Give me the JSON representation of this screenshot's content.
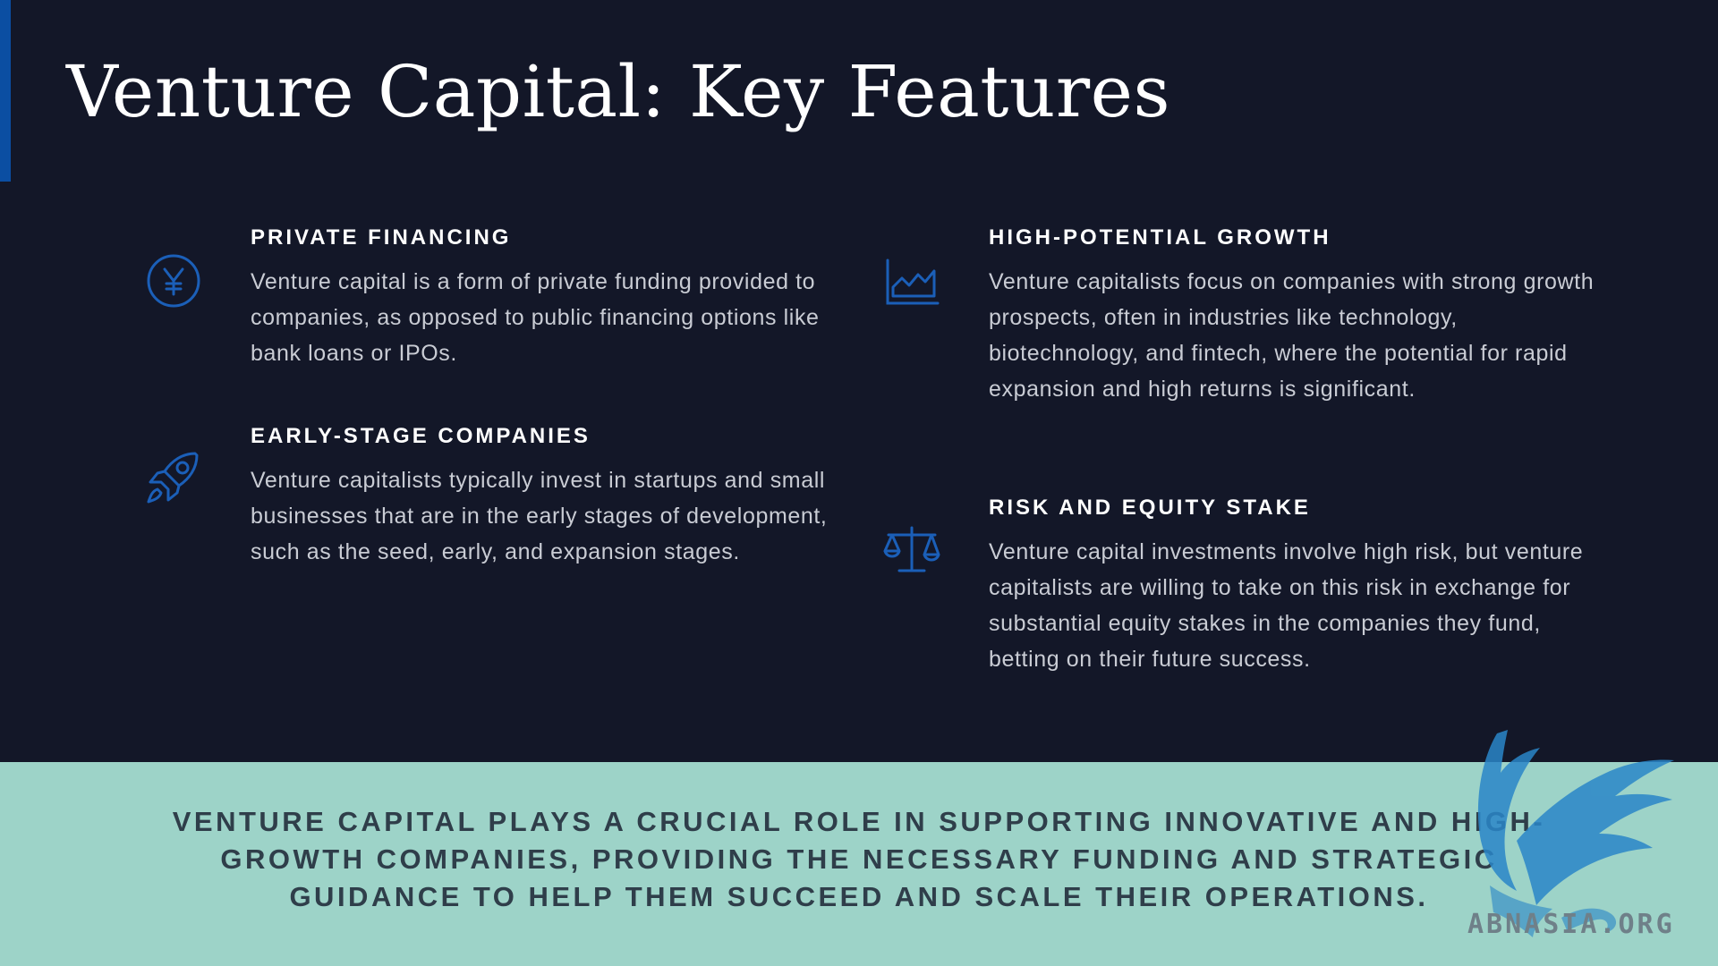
{
  "title": "Venture Capital: Key Features",
  "features": [
    {
      "icon": "yen-circle-icon",
      "heading": "PRIVATE FINANCING",
      "text": "Venture capital is a form of private funding provided to companies, as opposed to public financing options like bank loans or IPOs."
    },
    {
      "icon": "rocket-icon",
      "heading": "EARLY-STAGE COMPANIES",
      "text": "Venture capitalists typically invest in startups and small businesses that are in the early stages of development, such as the seed, early, and expansion stages."
    },
    {
      "icon": "growth-chart-icon",
      "heading": "HIGH-POTENTIAL GROWTH",
      "text": "Venture capitalists focus on companies with strong growth prospects, often in industries like technology, biotechnology, and fintech, where the potential for rapid expansion and high returns is significant."
    },
    {
      "icon": "balance-scale-icon",
      "heading": "RISK AND EQUITY STAKE",
      "text": "Venture capital investments involve high risk, but venture capitalists are willing to take on this risk in exchange for substantial equity stakes in the companies they fund, betting on their future success."
    }
  ],
  "footer": {
    "text": "VENTURE CAPITAL PLAYS A CRUCIAL ROLE IN SUPPORTING INNOVATIVE AND HIGH-GROWTH COMPANIES, PROVIDING THE NECESSARY FUNDING AND STRATEGIC GUIDANCE TO HELP THEM SUCCEED AND SCALE THEIR OPERATIONS."
  },
  "watermark": {
    "text": "ABNASIA.ORG"
  },
  "colors": {
    "background": "#131728",
    "accent": "#0b4ea2",
    "icon": "#1b5fb8",
    "footer_bg": "#9dd3c8",
    "footer_text": "#2f3e4a",
    "watermark_logo": "#2a86c8"
  }
}
